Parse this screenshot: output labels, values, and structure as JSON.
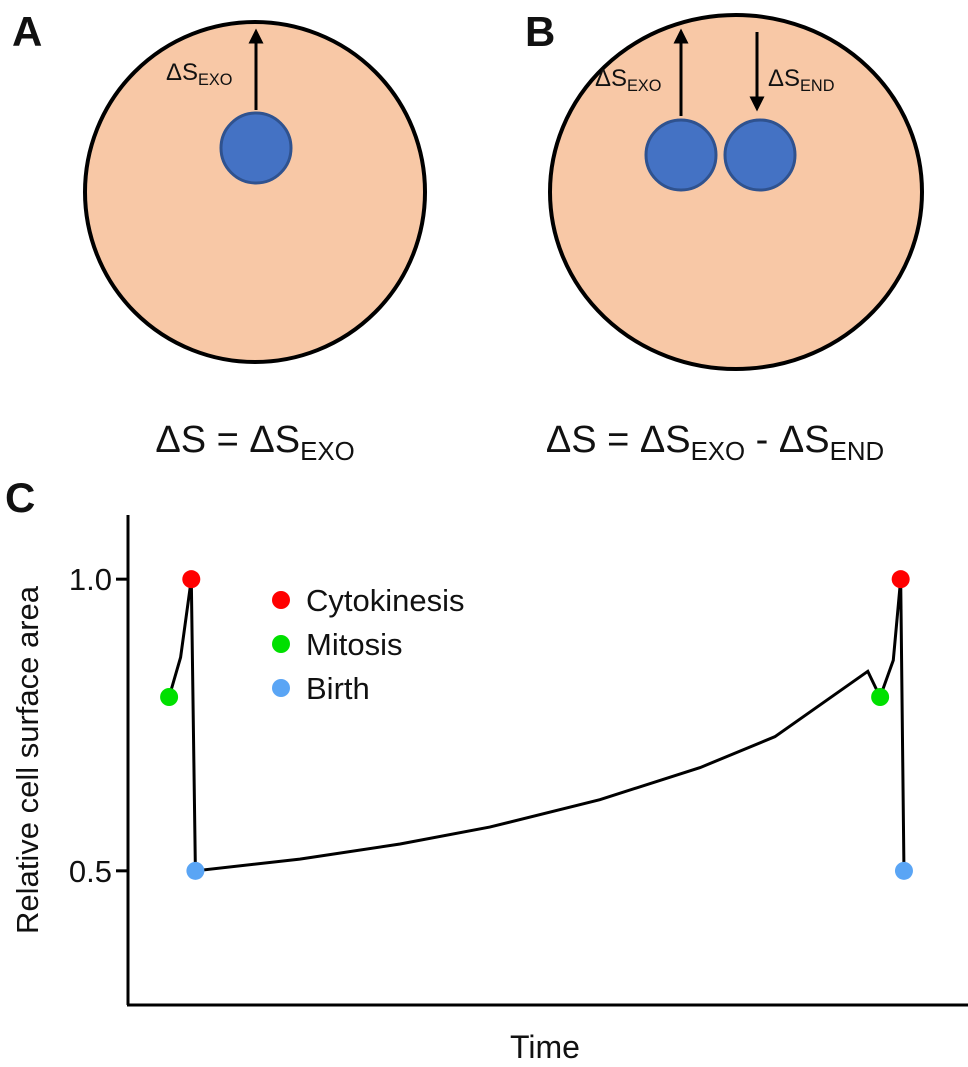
{
  "panels": {
    "A": {
      "letter": "A",
      "arrow_label": {
        "main": "ΔS",
        "sub": "EXO"
      },
      "equation": {
        "left": "ΔS = ΔS",
        "sub": "EXO"
      }
    },
    "B": {
      "letter": "B",
      "arrow_label_exo": {
        "main": "ΔS",
        "sub": "EXO"
      },
      "arrow_label_end": {
        "main": "ΔS",
        "sub": "END"
      },
      "equation": {
        "left": "ΔS = ΔS",
        "sub1": "EXO",
        "mid": " - ΔS",
        "sub2": "END"
      }
    },
    "C": {
      "letter": "C"
    }
  },
  "chart_data": {
    "type": "line",
    "xlabel": "Time",
    "ylabel": "Relative cell surface area",
    "xlim": [
      0,
      1
    ],
    "ylim": [
      0.27,
      1.11
    ],
    "yticks": [
      0.5,
      {
        "value": 1,
        "label": "1.0"
      }
    ],
    "curve": {
      "color": "#000000",
      "x": [
        0.05,
        0.064,
        0.077,
        0.082,
        0.209,
        0.331,
        0.44,
        0.574,
        0.696,
        0.787,
        0.9,
        0.915,
        0.931,
        0.94,
        0.944
      ],
      "values": [
        0.798,
        0.866,
        1,
        0.5,
        0.52,
        0.546,
        0.575,
        0.622,
        0.677,
        0.73,
        0.842,
        0.798,
        0.861,
        1,
        0.5
      ]
    },
    "series": [
      {
        "name": "Cytokinesis",
        "color": "#ff0000",
        "x": [
          0.077,
          0.94
        ],
        "values": [
          1,
          1
        ]
      },
      {
        "name": "Mitosis",
        "color": "#00e000",
        "x": [
          0.05,
          0.915
        ],
        "values": [
          0.798,
          0.798
        ]
      },
      {
        "name": "Birth",
        "color": "#5aa5f5",
        "x": [
          0.082,
          0.944
        ],
        "values": [
          0.5,
          0.5
        ]
      }
    ]
  }
}
